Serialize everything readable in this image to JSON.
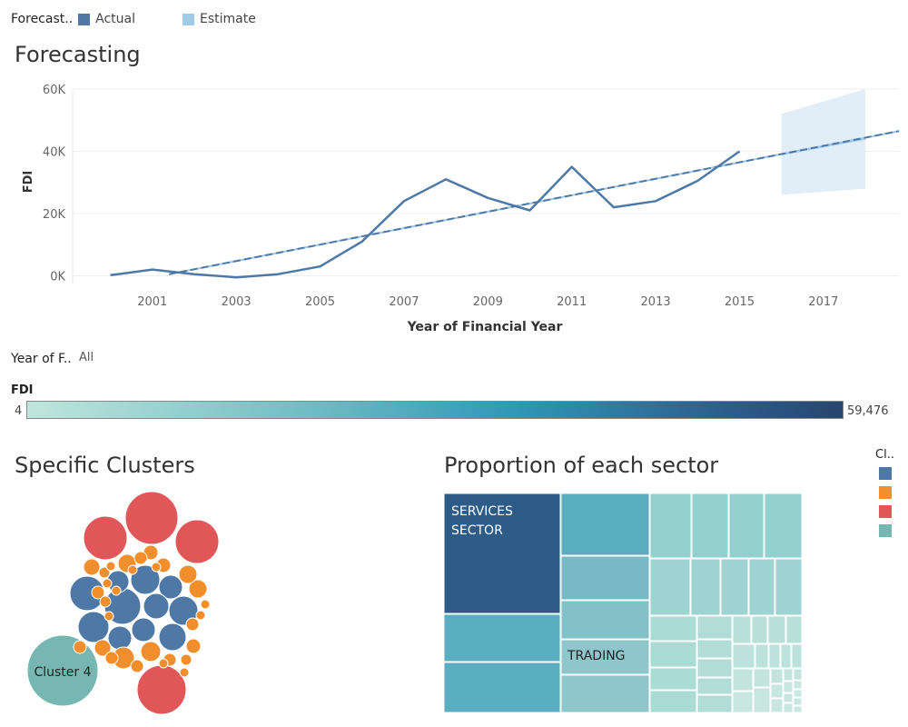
{
  "top_legend": {
    "title": "Forecast..",
    "items": [
      {
        "label": "Actual",
        "color": "#4e79a7"
      },
      {
        "label": "Estimate",
        "color": "#a0cbe8"
      }
    ]
  },
  "forecast": {
    "title": "Forecasting",
    "xlabel": "Year of Financial Year",
    "ylabel": "FDI"
  },
  "filter": {
    "label": "Year of F..",
    "value": "All"
  },
  "color_legend": {
    "label": "FDI",
    "min": "4",
    "max": "59,476"
  },
  "clusters": {
    "title": "Specific Clusters",
    "cluster_label": "Cluster 4"
  },
  "treemap": {
    "title": "Proportion of each sector",
    "label_services": "SERVICES SECTOR",
    "label_trading": "TRADING"
  },
  "cluster_legend": {
    "title": "Cl..",
    "colors": [
      "#4e79a7",
      "#f28e2b",
      "#e15759",
      "#76b7b2"
    ]
  },
  "chart_data": [
    {
      "type": "line",
      "x": [
        2000,
        2001,
        2002,
        2003,
        2004,
        2005,
        2006,
        2007,
        2008,
        2009,
        2010,
        2011,
        2012,
        2013,
        2014,
        2015
      ],
      "series": [
        {
          "name": "Actual",
          "values": [
            200,
            2000,
            500,
            -500,
            500,
            3000,
            11000,
            24000,
            31000,
            25000,
            21000,
            35000,
            22000,
            24000,
            30500,
            40000
          ]
        }
      ],
      "trend": {
        "x": [
          2001.4,
          2018.8
        ],
        "y": [
          500,
          46500
        ]
      },
      "estimate_band": {
        "x": [
          2016,
          2018
        ],
        "upper": [
          52000,
          60000
        ],
        "lower": [
          26000,
          28000
        ],
        "mid": [
          39000,
          44000
        ]
      },
      "x_ticks": [
        2001,
        2003,
        2005,
        2007,
        2009,
        2011,
        2013,
        2015,
        2017
      ],
      "y_ticks": [
        0,
        20000,
        40000,
        60000
      ],
      "y_tick_labels": [
        "0K",
        "20K",
        "40K",
        "60K"
      ],
      "xlim": [
        1999.1,
        2018.8
      ],
      "ylim": [
        -2500,
        60000
      ],
      "xlabel": "Year of Financial Year",
      "ylabel": "FDI",
      "title": "Forecasting"
    },
    {
      "type": "treemap",
      "title": "Proportion of each sector",
      "labels": [
        "SERVICES SECTOR",
        "TRADING"
      ]
    },
    {
      "type": "bubble",
      "title": "Specific Clusters",
      "labels": [
        "Cluster 4"
      ]
    }
  ]
}
